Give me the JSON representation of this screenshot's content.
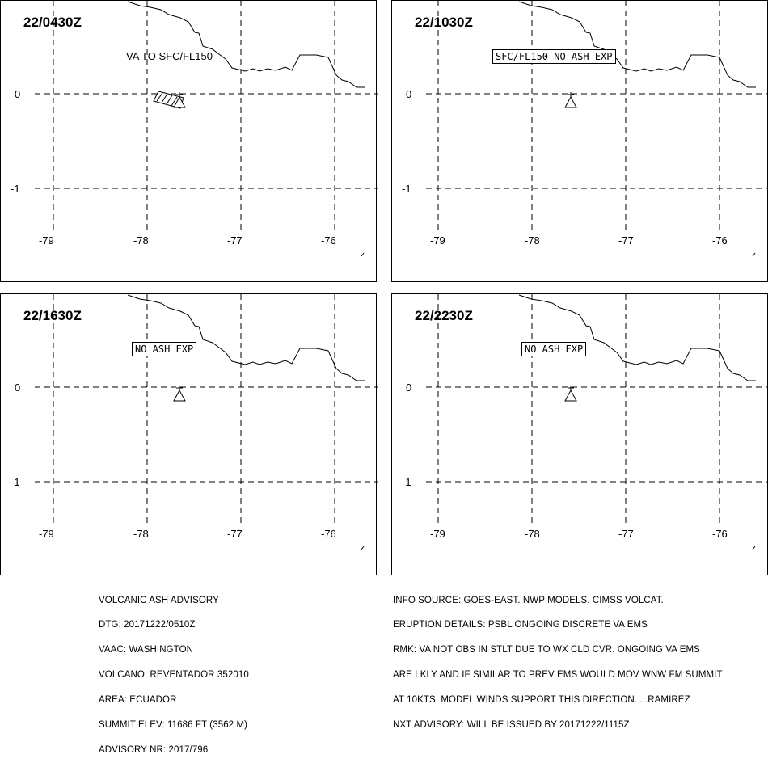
{
  "panels": [
    {
      "time": "22/0430Z",
      "label": "VA TO SFC/FL150",
      "label_boxed": false,
      "has_ash_polygon": true
    },
    {
      "time": "22/1030Z",
      "label": "SFC/FL150 NO ASH EXP",
      "label_boxed": true,
      "has_ash_polygon": false
    },
    {
      "time": "22/1630Z",
      "label": "NO ASH EXP",
      "label_boxed": true,
      "has_ash_polygon": false
    },
    {
      "time": "22/2230Z",
      "label": "NO ASH EXP",
      "label_boxed": true,
      "has_ash_polygon": false
    }
  ],
  "axes": {
    "lon_labels": [
      "-79",
      "-78",
      "-77",
      "-76"
    ],
    "lat_labels": [
      "0",
      "-1"
    ]
  },
  "advisory_left": [
    "VOLCANIC ASH ADVISORY",
    "DTG: 20171222/0510Z",
    "VAAC: WASHINGTON",
    "VOLCANO: REVENTADOR 352010",
    "AREA: ECUADOR",
    "SUMMIT ELEV: 11686 FT (3562 M)",
    "ADVISORY NR: 2017/796"
  ],
  "advisory_right": [
    "INFO SOURCE: GOES-EAST. NWP MODELS. CIMSS VOLCAT.",
    "ERUPTION DETAILS: PSBL ONGOING DISCRETE VA EMS",
    "RMK: VA NOT OBS IN STLT DUE TO WX CLD CVR. ONGOING VA EMS",
    "ARE LKLY AND IF SIMILAR TO PREV EMS WOULD MOV WNW FM SUMMIT",
    "AT 10KTS. MODEL WINDS SUPPORT THIS DIRECTION. ...RAMIREZ",
    "NXT ADVISORY: WILL BE ISSUED BY 20171222/1115Z"
  ]
}
